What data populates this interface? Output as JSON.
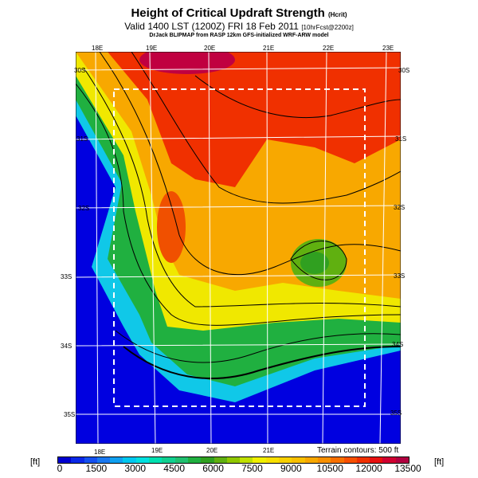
{
  "title": "Height of Critical Updraft Strength",
  "title_unit": "(Hcrit)",
  "valid_line": "Valid 1400 LST (1200Z) FRI 18 Feb 2011",
  "forecast_tag": "[10hrFcst@2200z]",
  "credit": "DrJack BLIPMAP from RASP 12km GFS-initialized WRF-ARW model",
  "map": {
    "lon_top": [
      "18E",
      "19E",
      "20E",
      "21E",
      "22E",
      "23E"
    ],
    "lon_bottom": [
      "18E",
      "19E",
      "20E",
      "21E"
    ],
    "lat_left": [
      "30S",
      "31S",
      "32S",
      "33S",
      "34S",
      "35S"
    ],
    "lat_right": [
      "30S",
      "31S",
      "32S",
      "33S",
      "34S",
      "35S"
    ],
    "terrain_note": "Terrain contours: 500 ft"
  },
  "colorbar": {
    "unit_left": "[ft]",
    "unit_right": "[ft]",
    "ticks": [
      "0",
      "1500",
      "3000",
      "4500",
      "6000",
      "7500",
      "9000",
      "10500",
      "12000",
      "13500"
    ],
    "colors": [
      "#0000d0",
      "#0a28e8",
      "#1450f0",
      "#1a78f0",
      "#10a0f0",
      "#00c8f0",
      "#00e0e0",
      "#00e0b0",
      "#10d090",
      "#20c070",
      "#20b040",
      "#30a020",
      "#60b010",
      "#90c800",
      "#c0e000",
      "#f0f000",
      "#f8e000",
      "#f8d000",
      "#f8c000",
      "#f8a800",
      "#f89000",
      "#f87000",
      "#f85000",
      "#f03000",
      "#e81010",
      "#d00030",
      "#b00040"
    ]
  }
}
